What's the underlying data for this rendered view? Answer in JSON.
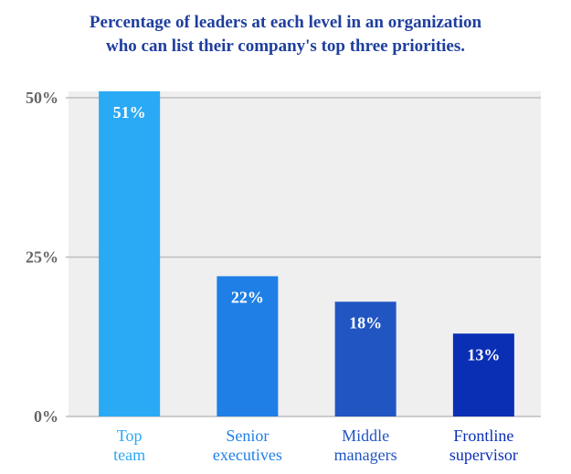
{
  "chart_data": {
    "type": "bar",
    "title_lines": [
      "Percentage of leaders at each level in an organization",
      "who can list their company's top three priorities."
    ],
    "categories": [
      [
        "Top",
        "team"
      ],
      [
        "Senior",
        "executives"
      ],
      [
        "Middle",
        "managers"
      ],
      [
        "Frontline",
        "supervisor"
      ]
    ],
    "values": [
      51,
      22,
      18,
      13
    ],
    "value_labels": [
      "51%",
      "22%",
      "18%",
      "13%"
    ],
    "yticks": [
      {
        "value": 0,
        "label": "0%"
      },
      {
        "value": 25,
        "label": "25%"
      },
      {
        "value": 50,
        "label": "50%"
      }
    ],
    "ylim": [
      0,
      51
    ],
    "grid": true,
    "colors": {
      "bars": [
        "#2aa9f5",
        "#1f7fe6",
        "#2155c2",
        "#0a2fb5"
      ],
      "title": "#1f3f9e",
      "plot_background": "#efefef",
      "gridline": "#bdbdbd",
      "tick_text": "#666666"
    }
  }
}
